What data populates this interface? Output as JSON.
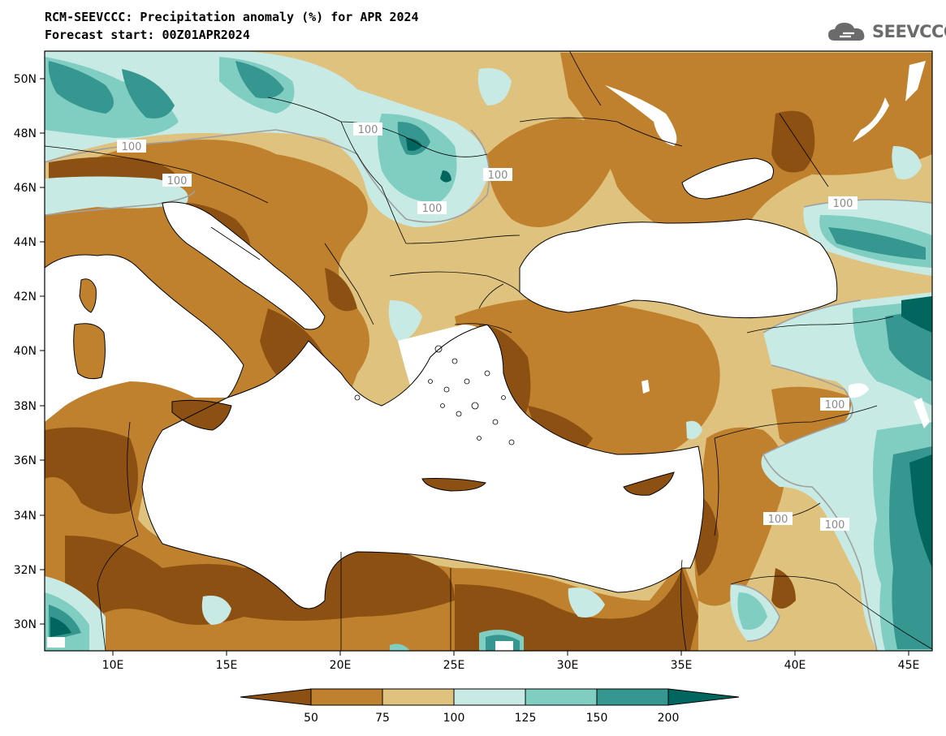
{
  "title": {
    "line1": "RCM-SEEVCCC: Precipitation anomaly (%) for APR 2024",
    "line2": "Forecast start: 00Z01APR2024"
  },
  "logo": {
    "text": "SEEVCCC",
    "icon": "cloud-icon"
  },
  "map": {
    "lon_labels": [
      "10E",
      "15E",
      "20E",
      "25E",
      "30E",
      "35E",
      "40E",
      "45E"
    ],
    "lat_labels": [
      "50N",
      "48N",
      "46N",
      "44N",
      "42N",
      "40N",
      "38N",
      "36N",
      "34N",
      "32N",
      "30N"
    ],
    "contour_label": "100",
    "colors": {
      "lt50": "#8c5012",
      "c50_75": "#bf812d",
      "c75_100": "#dfc27d",
      "c100_125": "#c7eae5",
      "c125_150": "#80cdc1",
      "c150_200": "#35978f",
      "gt200": "#01665e",
      "sea": "#ffffff"
    }
  },
  "colorbar": {
    "ticks": [
      "50",
      "75",
      "100",
      "125",
      "150",
      "200"
    ],
    "colors": [
      "#8c5012",
      "#bf812d",
      "#dfc27d",
      "#c7eae5",
      "#80cdc1",
      "#35978f",
      "#01665e"
    ]
  }
}
